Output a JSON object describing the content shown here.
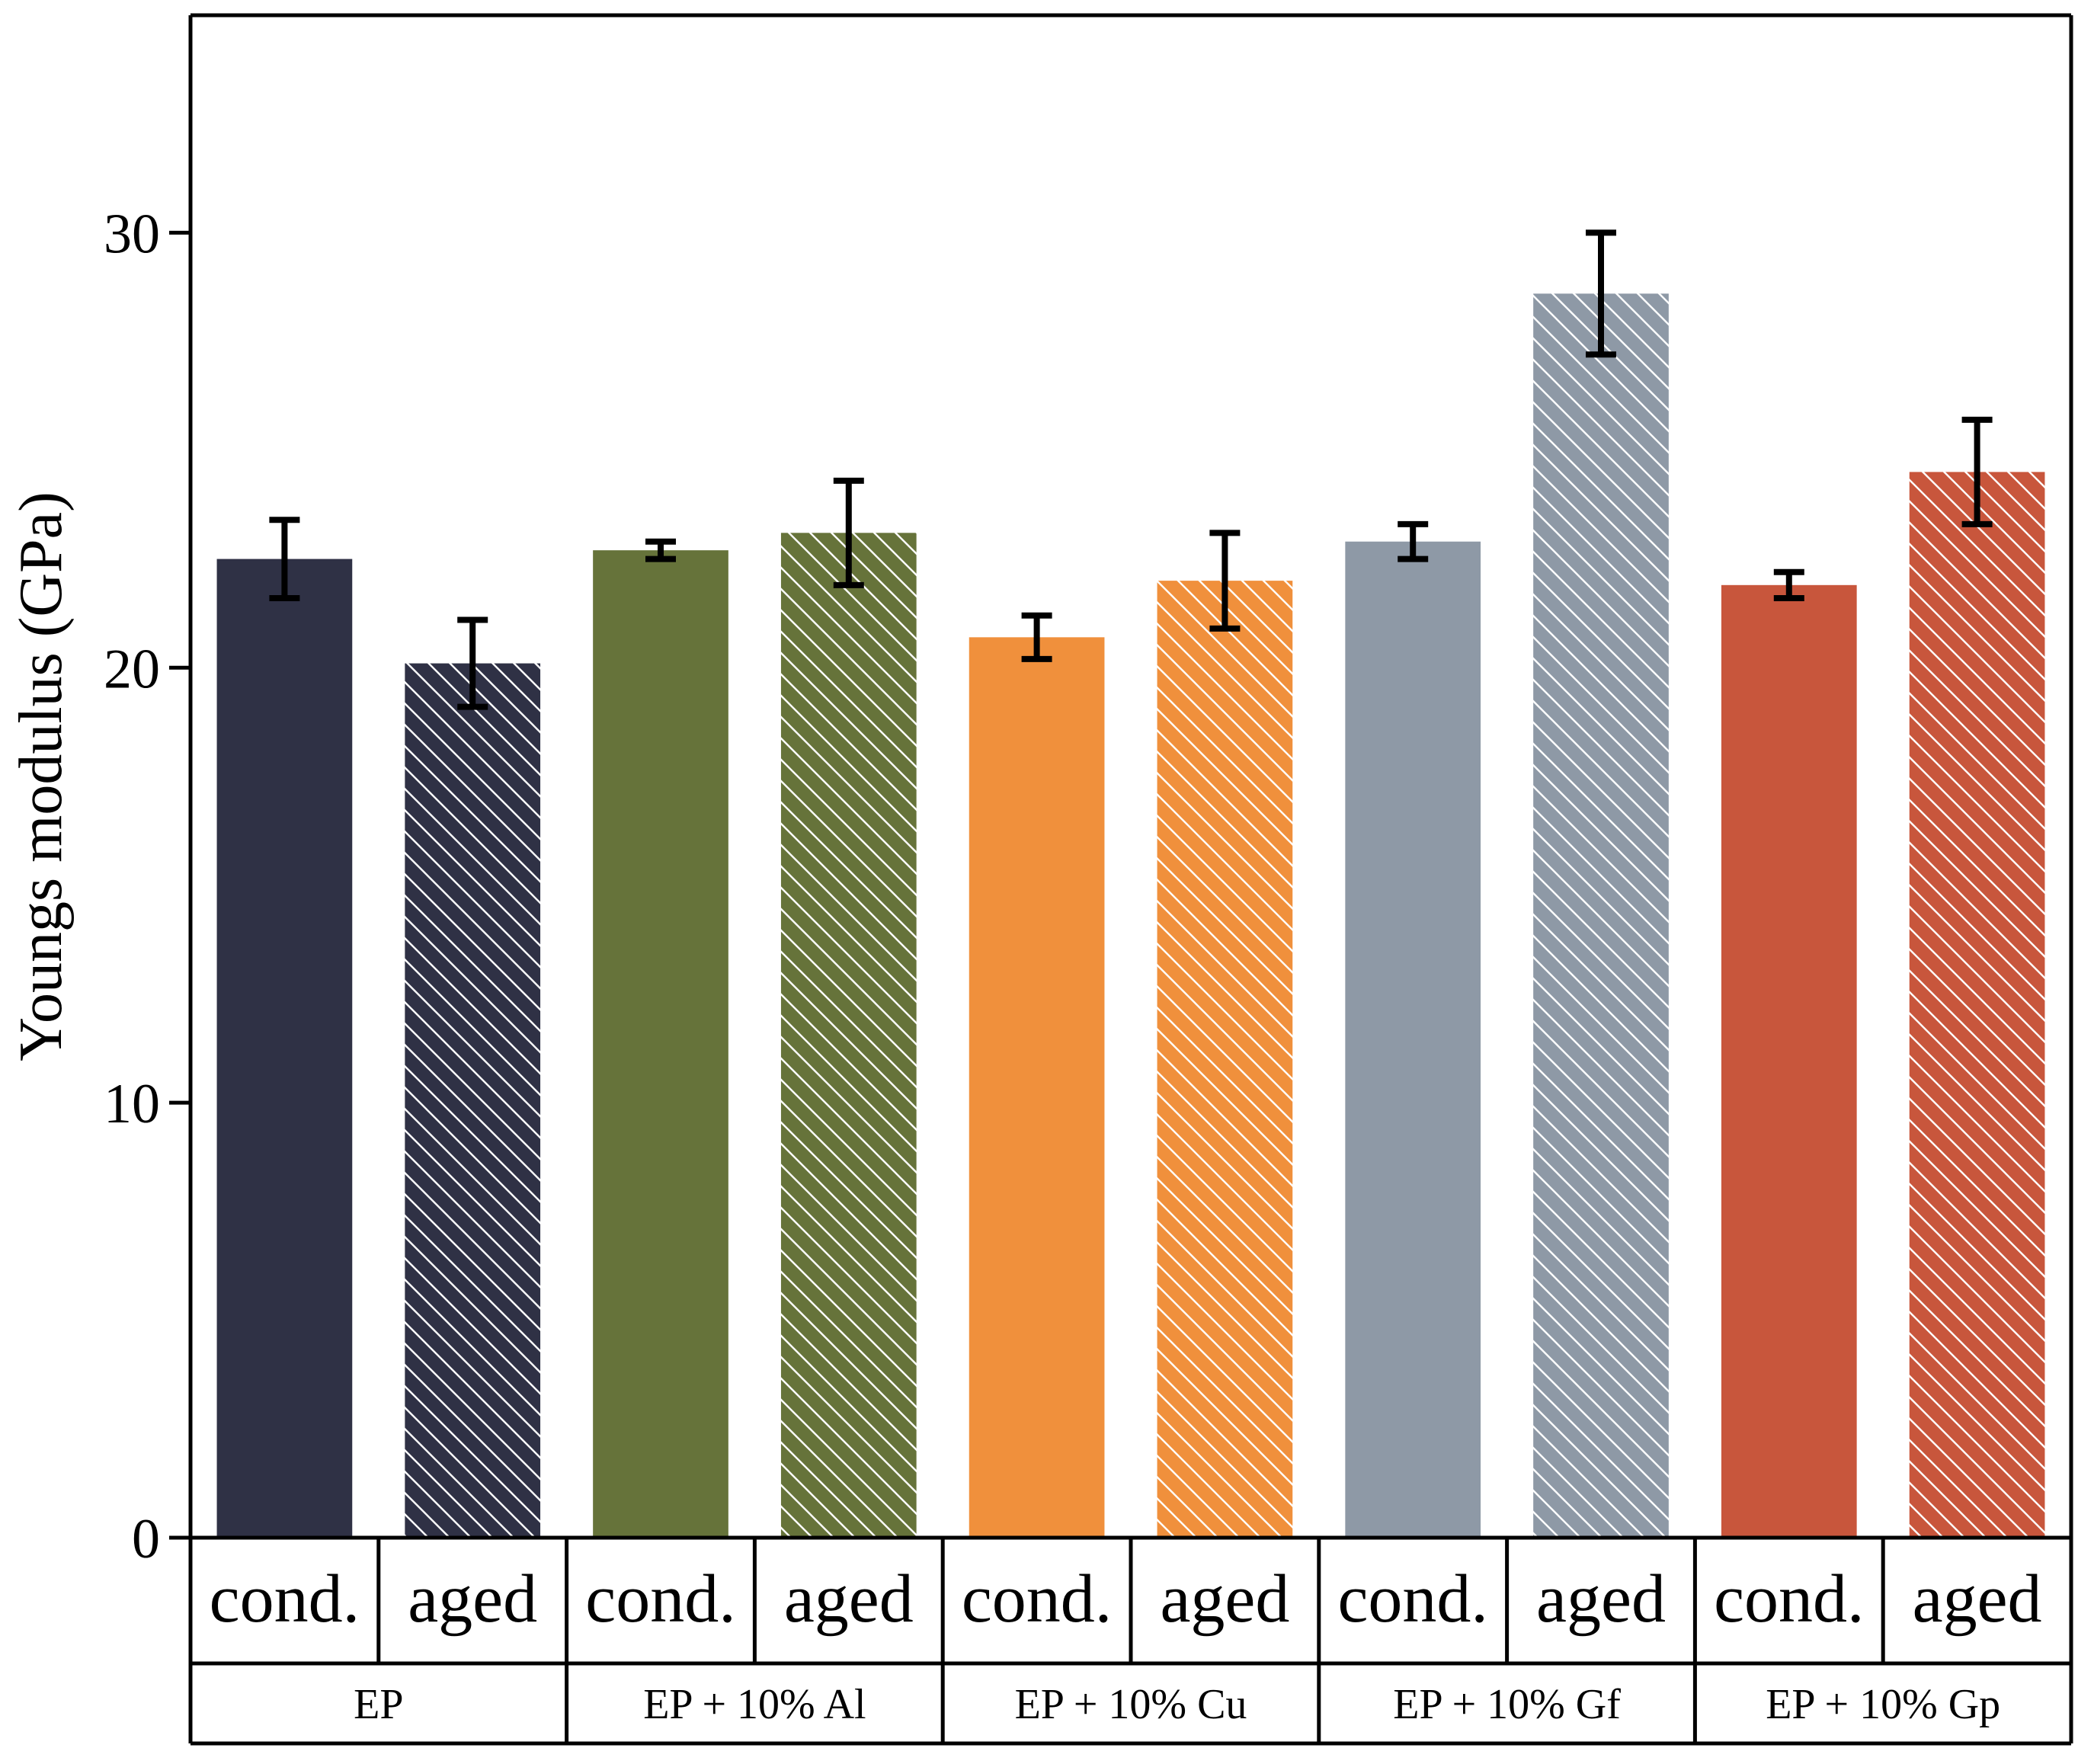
{
  "chart_data": {
    "type": "bar",
    "title": "",
    "ylabel": "Youngs modulus (GPa)",
    "ylim": [
      0,
      35
    ],
    "yticks": [
      0,
      10,
      20,
      30
    ],
    "groups": [
      "EP",
      "EP + 10% Al",
      "EP + 10% Cu",
      "EP + 10% Gf",
      "EP + 10% Gp"
    ],
    "conditions": [
      "cond.",
      "aged"
    ],
    "bars": [
      {
        "group": "EP",
        "condition": "cond.",
        "value": 22.5,
        "error": 0.9,
        "color": "#2f3145",
        "hatched": false
      },
      {
        "group": "EP",
        "condition": "aged",
        "value": 20.1,
        "error": 1.0,
        "color": "#2f3145",
        "hatched": true
      },
      {
        "group": "EP + 10% Al",
        "condition": "cond.",
        "value": 22.7,
        "error": 0.2,
        "color": "#66733a",
        "hatched": false
      },
      {
        "group": "EP + 10% Al",
        "condition": "aged",
        "value": 23.1,
        "error": 1.2,
        "color": "#66733a",
        "hatched": true
      },
      {
        "group": "EP + 10% Cu",
        "condition": "cond.",
        "value": 20.7,
        "error": 0.5,
        "color": "#f0903c",
        "hatched": false
      },
      {
        "group": "EP + 10% Cu",
        "condition": "aged",
        "value": 22.0,
        "error": 1.1,
        "color": "#f0903c",
        "hatched": true
      },
      {
        "group": "EP + 10% Gf",
        "condition": "cond.",
        "value": 22.9,
        "error": 0.4,
        "color": "#8e99a6",
        "hatched": false
      },
      {
        "group": "EP + 10% Gf",
        "condition": "aged",
        "value": 28.6,
        "error": 1.4,
        "color": "#8e99a6",
        "hatched": true
      },
      {
        "group": "EP + 10% Gp",
        "condition": "cond.",
        "value": 21.9,
        "error": 0.3,
        "color": "#c8563c",
        "hatched": false
      },
      {
        "group": "EP + 10% Gp",
        "condition": "aged",
        "value": 24.5,
        "error": 1.2,
        "color": "#c8563c",
        "hatched": true
      }
    ],
    "grid": false,
    "legend": "none"
  }
}
